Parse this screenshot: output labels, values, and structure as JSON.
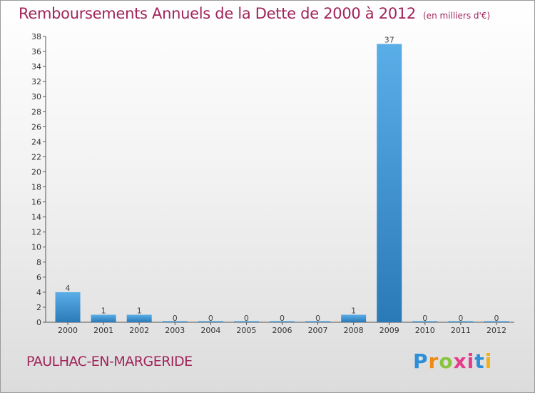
{
  "title": "Remboursements Annuels de la Dette de 2000 à 2012",
  "unit_note": "(en milliers d'€)",
  "commune": "PAULHAC-EN-MARGERIDE",
  "brand": {
    "p": "P",
    "r": "r",
    "o": "o",
    "x": "x",
    "i1": "i",
    "t": "t",
    "i2": "i"
  },
  "colors": {
    "title": "#a0245a",
    "bar_top": "#5aaee8",
    "bar_bottom": "#2a7ab8"
  },
  "chart_data": {
    "type": "bar",
    "title": "Remboursements Annuels de la Dette de 2000 à 2012",
    "xlabel": "",
    "ylabel": "",
    "ylim": [
      0,
      38
    ],
    "yticks": [
      0,
      2,
      4,
      6,
      8,
      10,
      12,
      14,
      16,
      18,
      20,
      22,
      24,
      26,
      28,
      30,
      32,
      34,
      36,
      38
    ],
    "categories": [
      "2000",
      "2001",
      "2002",
      "2003",
      "2004",
      "2005",
      "2006",
      "2007",
      "2008",
      "2009",
      "2010",
      "2011",
      "2012"
    ],
    "values": [
      4,
      1,
      1,
      0,
      0,
      0,
      0,
      0,
      1,
      37,
      0,
      0,
      0
    ],
    "grid": false
  }
}
